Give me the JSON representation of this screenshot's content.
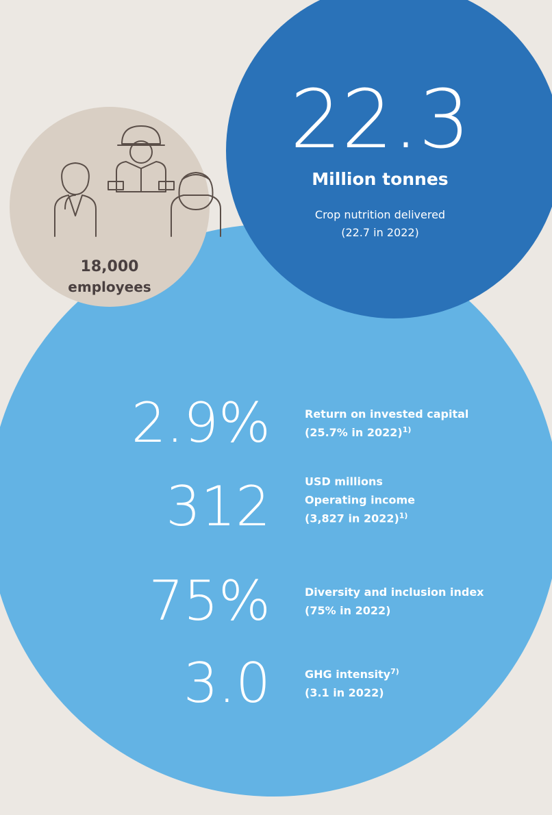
{
  "crop": {
    "value": "22.3",
    "unit": "Million tonnes",
    "lines": [
      "Crop nutrition delivered",
      "(22.7 in 2022)"
    ]
  },
  "employees": {
    "lines": [
      "18,000",
      "employees"
    ]
  },
  "metrics": [
    {
      "value": "2.9%",
      "lines": [
        {
          "text": "Return on invested capital"
        },
        {
          "text": "(25.7% in 2022)",
          "sup": "1)"
        }
      ]
    },
    {
      "value": "312",
      "lines": [
        {
          "text": "USD millions"
        },
        {
          "text": "Operating income"
        },
        {
          "text": "(3,827 in 2022)",
          "sup": "1)"
        }
      ]
    },
    {
      "value": "75%",
      "lines": [
        {
          "text": "Diversity and inclusion index"
        },
        {
          "text": "(75% in 2022)"
        }
      ]
    },
    {
      "value": "3.0",
      "lines": [
        {
          "text": "GHG intensity",
          "sup": "7)"
        },
        {
          "text": "(3.1 in 2022)"
        }
      ]
    }
  ]
}
